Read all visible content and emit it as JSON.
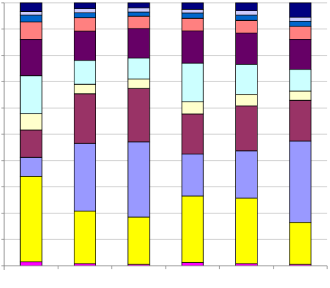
{
  "chart_data": {
    "type": "bar",
    "stacked": true,
    "orientation": "vertical",
    "title": "",
    "xlabel": "",
    "ylabel": "",
    "grid": true,
    "legend": "none",
    "ylim": [
      0,
      100
    ],
    "categories": [
      "",
      "",
      "",
      "",
      "",
      ""
    ],
    "series": [
      {
        "color": "#FF00FF",
        "values": [
          1.5,
          0.8,
          0.5,
          1.2,
          0.8,
          0.5
        ]
      },
      {
        "color": "#FFFF00",
        "values": [
          32.5,
          20.0,
          18.0,
          25.3,
          24.9,
          16.0
        ]
      },
      {
        "color": "#9999FF",
        "values": [
          7.2,
          25.7,
          28.6,
          16.0,
          18.0,
          30.9
        ]
      },
      {
        "color": "#993366",
        "values": [
          10.4,
          18.9,
          20.3,
          15.2,
          17.1,
          15.5
        ]
      },
      {
        "color": "#FFFFCC",
        "values": [
          6.2,
          3.6,
          3.6,
          4.7,
          4.4,
          3.5
        ]
      },
      {
        "color": "#CCFFFF",
        "values": [
          14.5,
          9.1,
          8.0,
          14.6,
          11.4,
          8.3
        ]
      },
      {
        "color": "#660066",
        "values": [
          13.8,
          11.1,
          11.2,
          12.3,
          11.9,
          11.4
        ]
      },
      {
        "color": "#FF8080",
        "values": [
          6.6,
          5.1,
          4.7,
          4.8,
          4.8,
          4.9
        ]
      },
      {
        "color": "#0066CC",
        "values": [
          2.6,
          1.9,
          1.6,
          2.0,
          2.0,
          2.0
        ]
      },
      {
        "color": "#CCCCFF",
        "values": [
          1.4,
          1.6,
          1.6,
          1.4,
          1.7,
          1.5
        ]
      },
      {
        "color": "#000080",
        "values": [
          3.3,
          2.2,
          1.9,
          2.5,
          3.0,
          5.5
        ]
      }
    ]
  }
}
